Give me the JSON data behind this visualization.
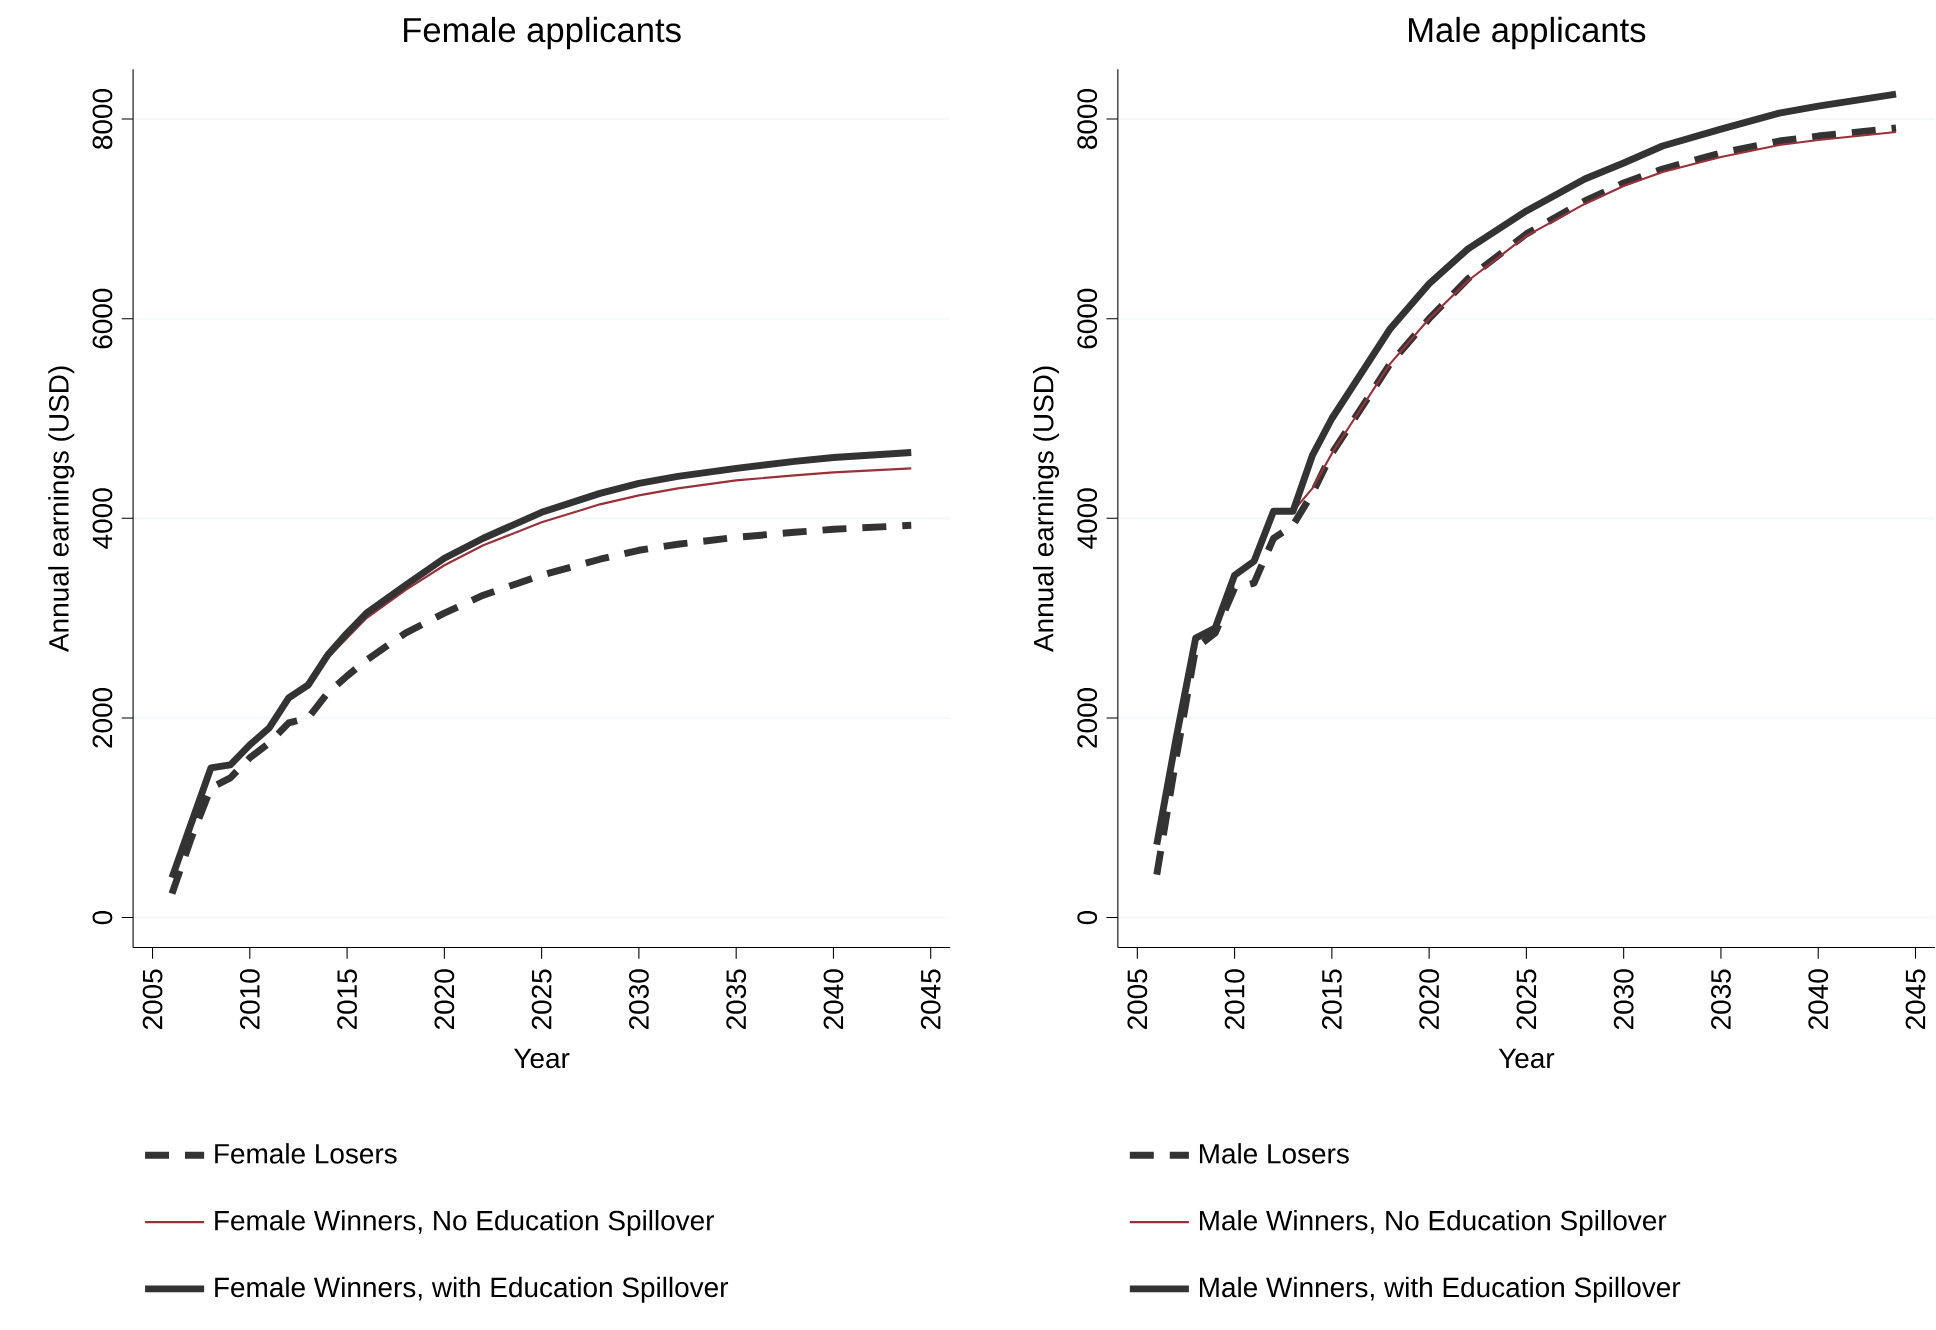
{
  "chart_data": [
    {
      "type": "line",
      "title": "Female applicants",
      "xlabel": "Year",
      "ylabel": "Annual earnings (USD)",
      "x": [
        2006,
        2007,
        2008,
        2009,
        2010,
        2011,
        2012,
        2013,
        2014,
        2015,
        2016,
        2018,
        2020,
        2022,
        2025,
        2028,
        2030,
        2032,
        2035,
        2038,
        2040,
        2044
      ],
      "xlim": [
        2004,
        2046
      ],
      "xticks": [
        2005,
        2010,
        2015,
        2020,
        2025,
        2030,
        2035,
        2040,
        2045
      ],
      "ylim": [
        -300,
        8500
      ],
      "yticks": [
        0,
        2000,
        4000,
        6000,
        8000
      ],
      "grid": "y",
      "legend": "bottom",
      "series": [
        {
          "name": "Female Losers",
          "color": "#333333",
          "line_style": "dashed",
          "values": [
            240,
            800,
            1300,
            1400,
            1600,
            1750,
            1950,
            2000,
            2250,
            2420,
            2580,
            2850,
            3050,
            3230,
            3430,
            3590,
            3680,
            3740,
            3810,
            3860,
            3890,
            3930
          ]
        },
        {
          "name": "Female Winners, No Education Spillover",
          "color": "#9b3038",
          "line_style": "solid",
          "values": [
            null,
            null,
            null,
            null,
            null,
            null,
            null,
            2330,
            2600,
            2800,
            3000,
            3280,
            3530,
            3730,
            3960,
            4140,
            4230,
            4300,
            4380,
            4430,
            4460,
            4500
          ]
        },
        {
          "name": "Female Winners, with Education Spillover",
          "color": "#333333",
          "line_style": "solid",
          "values": [
            400,
            950,
            1500,
            1530,
            1730,
            1900,
            2200,
            2330,
            2630,
            2850,
            3050,
            3330,
            3600,
            3800,
            4060,
            4250,
            4350,
            4420,
            4500,
            4570,
            4610,
            4660
          ]
        }
      ]
    },
    {
      "type": "line",
      "title": "Male applicants",
      "xlabel": "Year",
      "ylabel": "Annual earnings (USD)",
      "x": [
        2006,
        2007,
        2008,
        2009,
        2010,
        2011,
        2012,
        2013,
        2014,
        2015,
        2016,
        2018,
        2020,
        2022,
        2025,
        2028,
        2030,
        2032,
        2035,
        2038,
        2040,
        2044
      ],
      "xlim": [
        2004,
        2046
      ],
      "xticks": [
        2005,
        2010,
        2015,
        2020,
        2025,
        2030,
        2035,
        2040,
        2045
      ],
      "ylim": [
        -300,
        8500
      ],
      "yticks": [
        0,
        2000,
        4000,
        6000,
        8000
      ],
      "grid": "y",
      "legend": "bottom",
      "series": [
        {
          "name": "Male Losers",
          "color": "#333333",
          "line_style": "dashed",
          "values": [
            430,
            1600,
            2700,
            2850,
            3300,
            3350,
            3800,
            3930,
            4250,
            4650,
            4950,
            5550,
            6000,
            6400,
            6850,
            7180,
            7360,
            7500,
            7660,
            7780,
            7830,
            7910
          ]
        },
        {
          "name": "Male Winners, No Education Spillover",
          "color": "#9b3038",
          "line_style": "solid",
          "values": [
            null,
            null,
            null,
            null,
            null,
            null,
            4070,
            4070,
            4300,
            4650,
            4950,
            5550,
            6000,
            6380,
            6830,
            7150,
            7330,
            7470,
            7620,
            7740,
            7790,
            7870
          ]
        },
        {
          "name": "Male Winners, with Education Spillover",
          "color": "#333333",
          "line_style": "solid",
          "values": [
            730,
            1800,
            2800,
            2900,
            3430,
            3570,
            4070,
            4070,
            4630,
            5000,
            5300,
            5900,
            6350,
            6700,
            7080,
            7400,
            7560,
            7730,
            7900,
            8060,
            8130,
            8250
          ]
        }
      ]
    }
  ]
}
